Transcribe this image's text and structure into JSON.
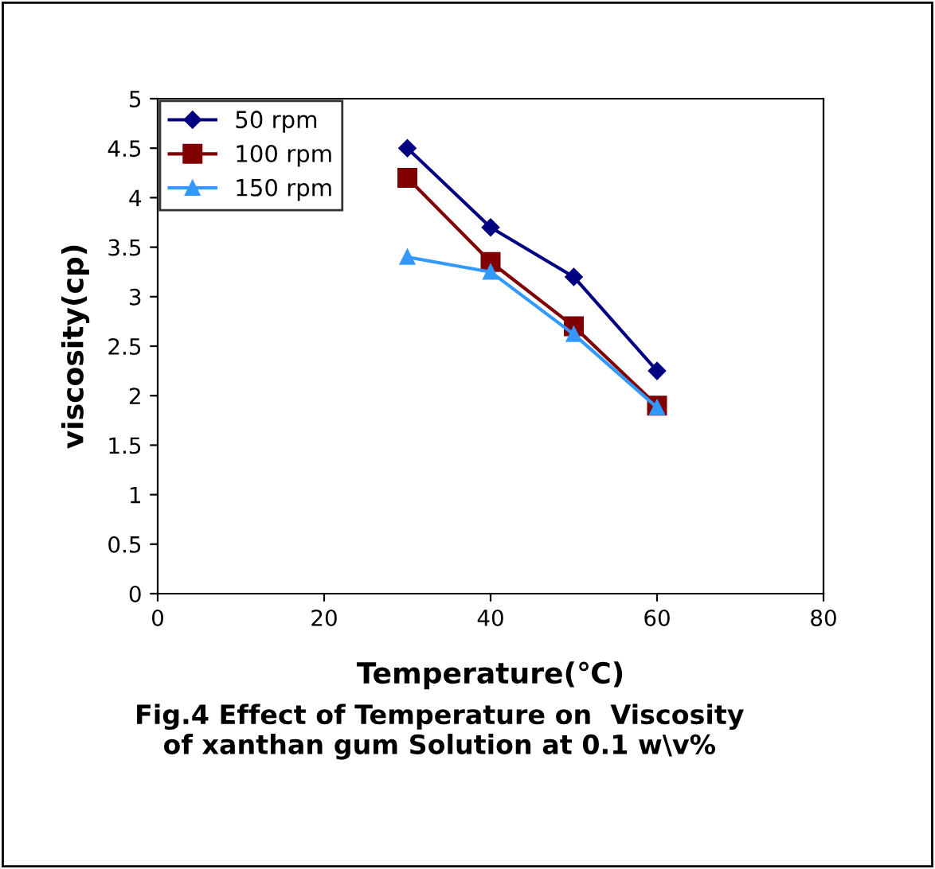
{
  "chart_data": {
    "type": "line",
    "title": "Fig.4 Effect of Temperature on  Viscosity\nof xanthan gum Solution at 0.1 w\\v%",
    "xlabel": "Temperature(℃)",
    "ylabel": "viscosity(cp)",
    "xlim": [
      0,
      80
    ],
    "xticks": [
      0,
      20,
      40,
      60,
      80
    ],
    "ylim": [
      0,
      5
    ],
    "yticks": [
      0,
      0.5,
      1,
      1.5,
      2,
      2.5,
      3,
      3.5,
      4,
      4.5,
      5
    ],
    "x": [
      30,
      40,
      50,
      60
    ],
    "grid": false,
    "legend": "top left",
    "line_style": "solid",
    "series": [
      {
        "name": "50 rpm",
        "color": "#000080",
        "marker": "diamond",
        "values": [
          4.5,
          3.7,
          3.2,
          2.25
        ]
      },
      {
        "name": "100 rpm",
        "color": "#800000",
        "marker": "square",
        "values": [
          4.2,
          3.35,
          2.7,
          1.9
        ]
      },
      {
        "name": "150 rpm",
        "color": "#3399ff",
        "marker": "triangle",
        "values": [
          3.4,
          3.25,
          2.62,
          1.88
        ]
      }
    ]
  }
}
